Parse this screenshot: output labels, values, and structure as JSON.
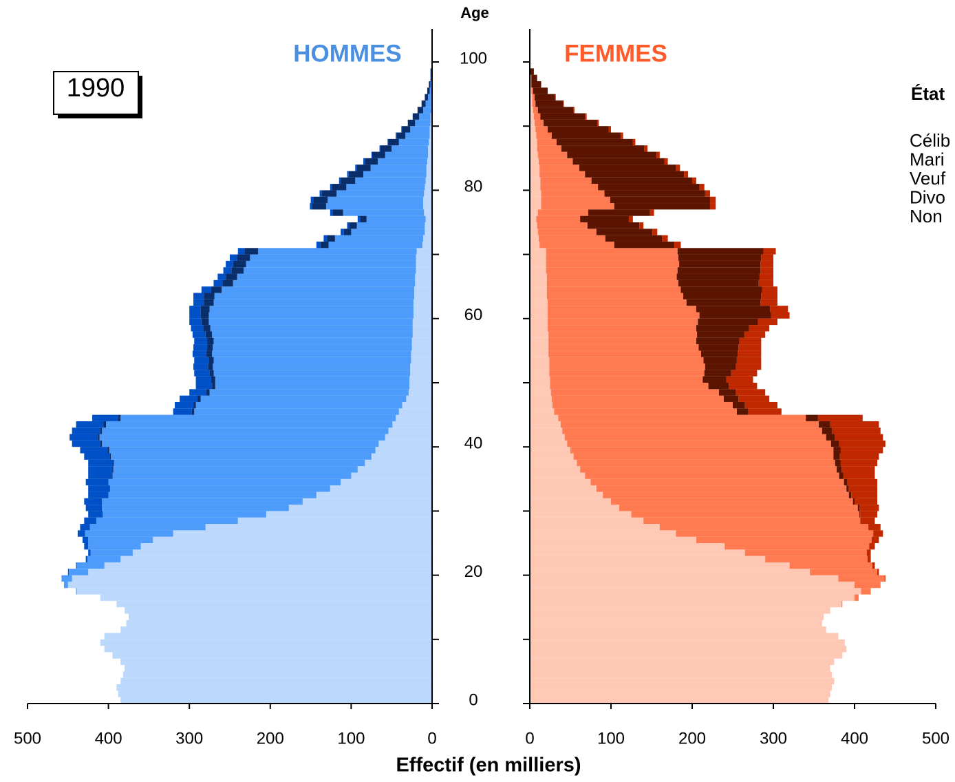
{
  "year_box": "1990",
  "age_label": "Age",
  "x_label": "Effectif (en milliers)",
  "legend": {
    "title": "État",
    "entries": [
      "Célib",
      "Mari",
      "Veuf",
      "Divo",
      "Non"
    ]
  },
  "chart_data": [
    {
      "type": "bar",
      "orientation": "horizontal",
      "stacked": true,
      "side": "left",
      "title": "HOMMES",
      "title_color": "#4a8fe0",
      "ages": [
        0,
        1,
        2,
        3,
        4,
        5,
        6,
        7,
        8,
        9,
        10,
        11,
        12,
        13,
        14,
        15,
        16,
        17,
        18,
        19,
        20,
        21,
        22,
        23,
        24,
        25,
        26,
        27,
        28,
        29,
        30,
        31,
        32,
        33,
        34,
        35,
        36,
        37,
        38,
        39,
        40,
        41,
        42,
        43,
        44,
        45,
        46,
        47,
        48,
        49,
        50,
        51,
        52,
        53,
        54,
        55,
        56,
        57,
        58,
        59,
        60,
        61,
        62,
        63,
        64,
        65,
        66,
        67,
        68,
        69,
        70,
        71,
        72,
        73,
        74,
        75,
        76,
        77,
        78,
        79,
        80,
        81,
        82,
        83,
        84,
        85,
        86,
        87,
        88,
        89,
        90,
        91,
        92,
        93,
        94,
        95,
        96,
        97,
        98
      ],
      "xlim": [
        0,
        500
      ],
      "xticks": [
        0,
        100,
        200,
        300,
        400,
        500
      ],
      "ylim": [
        0,
        100
      ],
      "yticks": [
        0,
        20,
        40,
        60,
        80,
        100
      ],
      "yminor_ticks": [
        10,
        30,
        50,
        70,
        90
      ],
      "series": [
        {
          "color": "#bcd8fc",
          "values": [
            385,
            388,
            390,
            385,
            382,
            380,
            385,
            395,
            405,
            410,
            405,
            385,
            378,
            375,
            380,
            390,
            410,
            439,
            450,
            445,
            425,
            405,
            385,
            370,
            360,
            345,
            320,
            280,
            240,
            205,
            177,
            160,
            143,
            126,
            113,
            100,
            92,
            83,
            75,
            70,
            66,
            58,
            54,
            49,
            45,
            41,
            37,
            32,
            29,
            28,
            28,
            27,
            27,
            26,
            26,
            25,
            25,
            24,
            24,
            24,
            23,
            23,
            23,
            22,
            22,
            21,
            21,
            20,
            20,
            20,
            19,
            12,
            11,
            9,
            9,
            8,
            10,
            11,
            11,
            10,
            9,
            8,
            7,
            7,
            6,
            5,
            5,
            4,
            3,
            3,
            2,
            2,
            1,
            1,
            1,
            0,
            0,
            0,
            0
          ]
        },
        {
          "color": "#4d9bfa",
          "values": [
            0,
            0,
            0,
            0,
            0,
            0,
            0,
            0,
            0,
            0,
            0,
            0,
            0,
            0,
            0,
            0,
            0,
            1,
            5,
            13,
            24,
            34,
            41,
            52,
            65,
            80,
            109,
            143,
            175,
            202,
            231,
            248,
            257,
            272,
            287,
            295,
            302,
            310,
            322,
            329,
            342,
            353,
            354,
            354,
            340,
            253,
            255,
            254,
            246,
            240,
            240,
            243,
            244,
            244,
            246,
            246,
            245,
            248,
            250,
            252,
            253,
            252,
            247,
            247,
            238,
            225,
            220,
            213,
            210,
            205,
            196,
            116,
            109,
            91,
            84,
            73,
            100,
            120,
            118,
            108,
            97,
            87,
            78,
            69,
            61,
            53,
            45,
            37,
            30,
            24,
            19,
            14,
            10,
            7,
            4,
            3,
            2,
            1,
            1
          ]
        },
        {
          "color": "#0a2e6a",
          "values": [
            0,
            0,
            0,
            0,
            0,
            0,
            0,
            0,
            0,
            0,
            0,
            0,
            0,
            0,
            0,
            0,
            0,
            0,
            0,
            0,
            0,
            0,
            0,
            0,
            0,
            0,
            0,
            0,
            0,
            0,
            0,
            0,
            0,
            0,
            0,
            1,
            1,
            1,
            1,
            2,
            2,
            2,
            2,
            3,
            3,
            3,
            3,
            4,
            4,
            4,
            5,
            5,
            6,
            6,
            7,
            7,
            8,
            8,
            9,
            9,
            10,
            11,
            12,
            13,
            13,
            13,
            14,
            15,
            16,
            16,
            17,
            10,
            10,
            9,
            9,
            8,
            13,
            17,
            18,
            18,
            18,
            18,
            18,
            17,
            16,
            16,
            14,
            13,
            11,
            10,
            9,
            8,
            7,
            5,
            4,
            3,
            2,
            1,
            1
          ]
        },
        {
          "color": "#0050c8",
          "values": [
            0,
            0,
            0,
            0,
            0,
            0,
            0,
            0,
            0,
            0,
            0,
            0,
            0,
            0,
            0,
            0,
            0,
            0,
            0,
            0,
            1,
            1,
            2,
            3,
            5,
            7,
            9,
            12,
            15,
            18,
            20,
            22,
            25,
            27,
            28,
            29,
            30,
            31,
            32,
            34,
            35,
            35,
            35,
            34,
            32,
            23,
            23,
            22,
            21,
            20,
            19,
            19,
            18,
            18,
            17,
            17,
            16,
            16,
            15,
            15,
            14,
            14,
            13,
            13,
            12,
            11,
            10,
            10,
            9,
            9,
            8,
            5,
            4,
            4,
            3,
            3,
            3,
            3,
            3,
            3,
            2,
            2,
            2,
            2,
            2,
            1,
            1,
            1,
            1,
            1,
            0,
            0,
            0,
            0,
            0,
            0,
            0,
            0,
            0
          ]
        }
      ]
    },
    {
      "type": "bar",
      "orientation": "horizontal",
      "stacked": true,
      "side": "right",
      "title": "FEMMES",
      "title_color": "#ff5a2a",
      "ages": [
        0,
        1,
        2,
        3,
        4,
        5,
        6,
        7,
        8,
        9,
        10,
        11,
        12,
        13,
        14,
        15,
        16,
        17,
        18,
        19,
        20,
        21,
        22,
        23,
        24,
        25,
        26,
        27,
        28,
        29,
        30,
        31,
        32,
        33,
        34,
        35,
        36,
        37,
        38,
        39,
        40,
        41,
        42,
        43,
        44,
        45,
        46,
        47,
        48,
        49,
        50,
        51,
        52,
        53,
        54,
        55,
        56,
        57,
        58,
        59,
        60,
        61,
        62,
        63,
        64,
        65,
        66,
        67,
        68,
        69,
        70,
        71,
        72,
        73,
        74,
        75,
        76,
        77,
        78,
        79,
        80,
        81,
        82,
        83,
        84,
        85,
        86,
        87,
        88,
        89,
        90,
        91,
        92,
        93,
        94,
        95,
        96,
        97,
        98
      ],
      "xlim": [
        0,
        500
      ],
      "xticks": [
        0,
        100,
        200,
        300,
        400,
        500
      ],
      "ylim": [
        0,
        100
      ],
      "yticks": [
        0,
        20,
        40,
        60,
        80,
        100
      ],
      "yminor_ticks": [
        10,
        30,
        50,
        70,
        90
      ],
      "series": [
        {
          "color": "#fec8b4",
          "values": [
            368,
            370,
            372,
            375,
            372,
            370,
            375,
            385,
            390,
            388,
            380,
            365,
            360,
            362,
            370,
            384,
            400,
            408,
            400,
            380,
            345,
            320,
            290,
            265,
            240,
            205,
            180,
            160,
            140,
            125,
            110,
            100,
            90,
            82,
            75,
            68,
            62,
            58,
            54,
            50,
            46,
            43,
            40,
            38,
            35,
            30,
            28,
            27,
            26,
            25,
            25,
            24,
            24,
            24,
            23,
            23,
            23,
            23,
            22,
            22,
            22,
            22,
            22,
            21,
            21,
            21,
            21,
            20,
            20,
            20,
            20,
            12,
            11,
            10,
            9,
            8,
            10,
            14,
            14,
            14,
            13,
            13,
            12,
            12,
            11,
            10,
            9,
            9,
            8,
            7,
            6,
            5,
            4,
            3,
            3,
            2,
            1,
            1,
            0
          ]
        },
        {
          "color": "#ff7a50",
          "values": [
            0,
            0,
            0,
            0,
            0,
            0,
            0,
            0,
            0,
            0,
            0,
            0,
            0,
            0,
            0,
            1,
            5,
            12,
            32,
            57,
            83,
            102,
            126,
            150,
            178,
            216,
            243,
            257,
            267,
            281,
            294,
            298,
            303,
            308,
            312,
            313,
            316,
            318,
            320,
            324,
            325,
            322,
            320,
            318,
            305,
            225,
            222,
            212,
            207,
            195,
            188,
            191,
            192,
            190,
            188,
            185,
            182,
            183,
            183,
            185,
            187,
            183,
            171,
            168,
            165,
            162,
            160,
            162,
            164,
            163,
            162,
            92,
            82,
            72,
            62,
            54,
            62,
            90,
            85,
            78,
            71,
            63,
            56,
            49,
            42,
            36,
            30,
            24,
            19,
            15,
            11,
            8,
            6,
            4,
            3,
            2,
            1,
            1,
            0
          ]
        },
        {
          "color": "#5a1400",
          "values": [
            0,
            0,
            0,
            0,
            0,
            0,
            0,
            0,
            0,
            0,
            0,
            0,
            0,
            0,
            0,
            0,
            0,
            0,
            0,
            0,
            0,
            0,
            0,
            0,
            0,
            0,
            0,
            0,
            0,
            1,
            2,
            2,
            3,
            3,
            4,
            5,
            6,
            7,
            8,
            9,
            10,
            11,
            12,
            14,
            15,
            14,
            15,
            18,
            21,
            25,
            29,
            33,
            38,
            41,
            45,
            49,
            53,
            58,
            65,
            74,
            88,
            91,
            91,
            96,
            100,
            99,
            102,
            102,
            100,
            102,
            106,
            74,
            70,
            69,
            64,
            60,
            76,
            118,
            123,
            124,
            125,
            124,
            122,
            119,
            113,
            110,
            102,
            94,
            85,
            75,
            66,
            55,
            44,
            34,
            25,
            18,
            12,
            7,
            5
          ]
        },
        {
          "color": "#c02800",
          "values": [
            0,
            0,
            0,
            0,
            0,
            0,
            0,
            0,
            0,
            0,
            0,
            0,
            0,
            0,
            0,
            0,
            0,
            0,
            0,
            1,
            2,
            3,
            4,
            5,
            7,
            9,
            12,
            15,
            18,
            21,
            24,
            28,
            32,
            35,
            37,
            39,
            41,
            45,
            48,
            52,
            57,
            59,
            60,
            60,
            55,
            41,
            40,
            38,
            36,
            35,
            33,
            32,
            31,
            30,
            29,
            28,
            27,
            26,
            25,
            24,
            23,
            22,
            21,
            20,
            19,
            18,
            17,
            16,
            16,
            15,
            15,
            8,
            7,
            6,
            5,
            5,
            5,
            7,
            7,
            6,
            6,
            5,
            5,
            5,
            4,
            4,
            4,
            3,
            3,
            3,
            2,
            2,
            1,
            1,
            1,
            0,
            0,
            0,
            0
          ]
        }
      ]
    }
  ]
}
